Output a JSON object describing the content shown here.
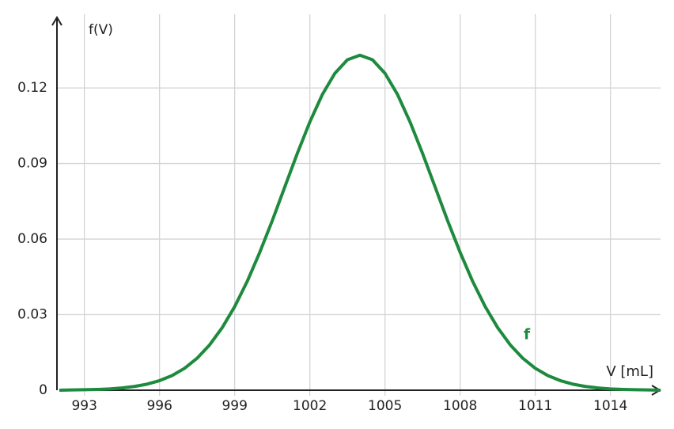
{
  "chart_data": {
    "type": "line",
    "y_label": "f(V)",
    "x_label": "V [mL]",
    "x": [
      992,
      992.5,
      993,
      993.5,
      994,
      994.5,
      995,
      995.5,
      996,
      996.5,
      997,
      997.5,
      998,
      998.5,
      999,
      999.5,
      1000,
      1000.5,
      1001,
      1001.5,
      1002,
      1002.5,
      1003,
      1003.5,
      1004,
      1004.5,
      1005,
      1005.5,
      1006,
      1006.5,
      1007,
      1007.5,
      1008,
      1008.5,
      1009,
      1009.5,
      1010,
      1010.5,
      1011,
      1011.5,
      1012,
      1012.5,
      1013,
      1013.5,
      1014,
      1014.5,
      1015,
      1015.5,
      1016
    ],
    "series": [
      {
        "name": "f",
        "color": "#1e8a3e",
        "values": [
          0,
          0.0001,
          0.0002,
          0.0003,
          0.0005,
          0.0009,
          0.0015,
          0.0024,
          0.0038,
          0.0058,
          0.0087,
          0.0127,
          0.018,
          0.0248,
          0.0332,
          0.0432,
          0.0547,
          0.0673,
          0.0807,
          0.094,
          0.1065,
          0.1174,
          0.1258,
          0.1312,
          0.133,
          0.1312,
          0.1258,
          0.1174,
          0.1065,
          0.094,
          0.0807,
          0.0673,
          0.0547,
          0.0432,
          0.0332,
          0.0248,
          0.018,
          0.0127,
          0.0087,
          0.0058,
          0.0038,
          0.0024,
          0.0015,
          0.0009,
          0.0005,
          0.0003,
          0.0002,
          0.0001,
          0
        ]
      }
    ],
    "xlim": [
      992,
      1016
    ],
    "ylim": [
      0,
      0.148
    ],
    "xticks": [
      993,
      996,
      999,
      1002,
      1005,
      1008,
      1011,
      1014
    ],
    "yticks": [
      0,
      0.03,
      0.06,
      0.09,
      0.12
    ],
    "grid": true
  }
}
